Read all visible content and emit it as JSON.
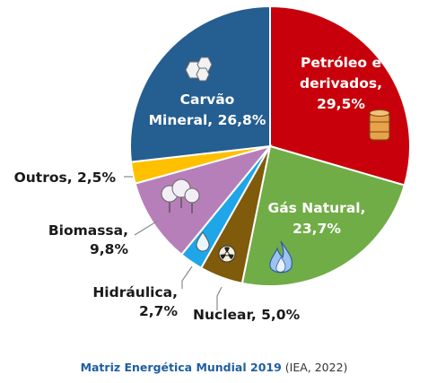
{
  "chart_data": {
    "type": "pie",
    "slices": [
      {
        "name": "Petróleo e derivados",
        "value": 29.5,
        "label_lines": [
          "Petróleo e",
          "derivados,",
          "29,5%"
        ],
        "color": "#c8000b",
        "label_pos": "inside",
        "icon": "oil-barrel-icon"
      },
      {
        "name": "Gás Natural",
        "value": 23.7,
        "label_lines": [
          "Gás Natural,",
          "23,7%"
        ],
        "color": "#70ad47",
        "label_pos": "inside",
        "icon": "gas-flame-icon"
      },
      {
        "name": "Nuclear",
        "value": 5.0,
        "label_lines": [
          "Nuclear, 5,0%"
        ],
        "color": "#7f5b0b",
        "label_pos": "outside",
        "icon": "radiation-icon"
      },
      {
        "name": "Hidráulica",
        "value": 2.7,
        "label_lines": [
          "Hidráulica,",
          "2,7%"
        ],
        "color": "#1ea6e8",
        "label_pos": "outside",
        "icon": "water-drop-icon"
      },
      {
        "name": "Biomassa",
        "value": 9.8,
        "label_lines": [
          "Biomassa,",
          "9,8%"
        ],
        "color": "#b77fb9",
        "label_pos": "outside",
        "icon": "trees-icon"
      },
      {
        "name": "Outros",
        "value": 2.5,
        "label_lines": [
          "Outros, 2,5%"
        ],
        "color": "#ffc000",
        "label_pos": "outside",
        "icon": ""
      },
      {
        "name": "Carvão Mineral",
        "value": 26.8,
        "label_lines": [
          "Carvão",
          "Mineral, 26,8%"
        ],
        "color": "#255e91",
        "label_pos": "inside",
        "icon": "coal-icon"
      }
    ]
  },
  "caption": {
    "title": "Matriz Energética Mundial 2019",
    "source": "(IEA, 2022)"
  }
}
